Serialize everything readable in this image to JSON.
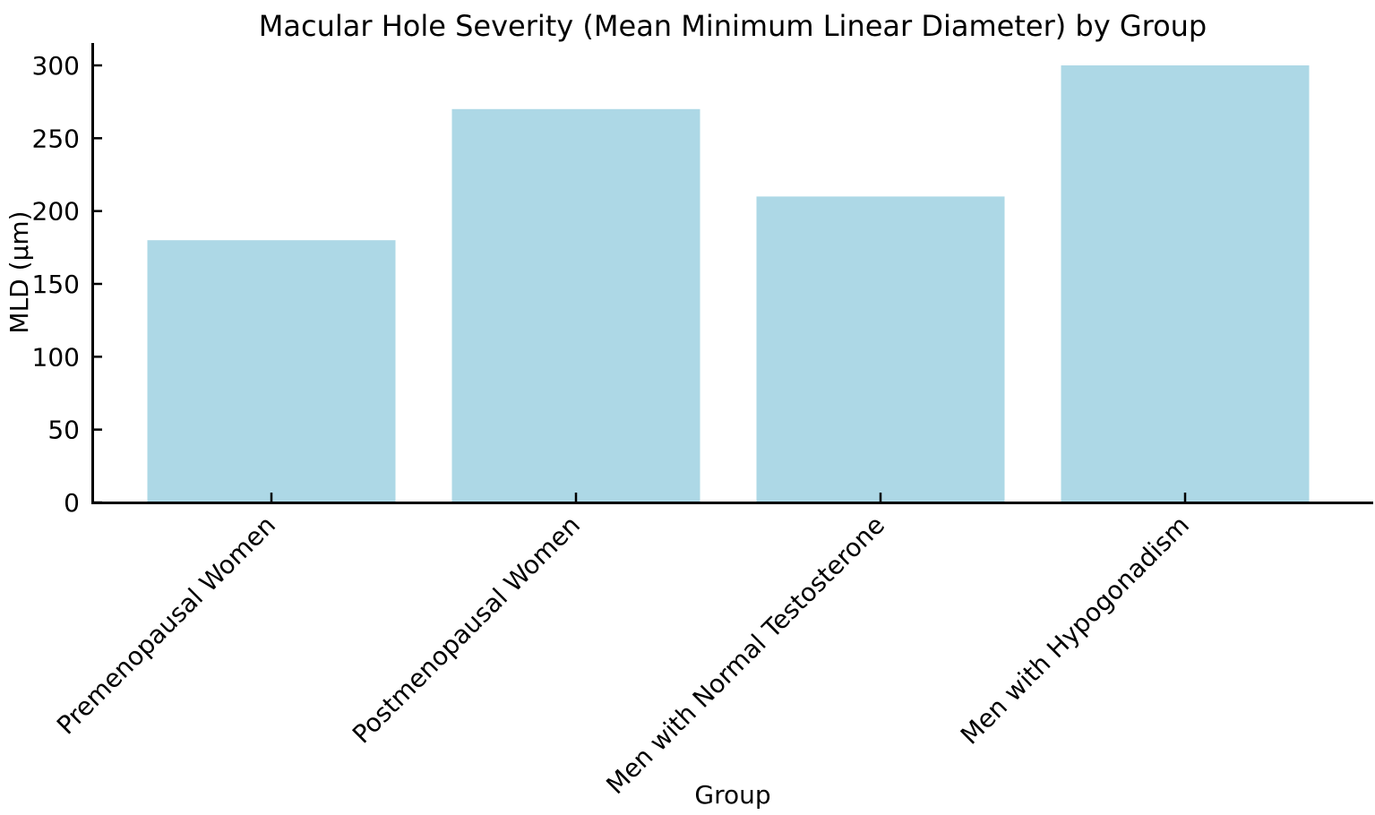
{
  "chart_data": {
    "type": "bar",
    "title": "Macular Hole Severity (Mean Minimum Linear Diameter) by Group",
    "xlabel": "Group",
    "ylabel": "MLD (μm)",
    "categories": [
      "Premenopausal Women",
      "Postmenopausal Women",
      "Men with Normal Testosterone",
      "Men with Hypogonadism"
    ],
    "values": [
      180,
      270,
      210,
      300
    ],
    "yticks": [
      0,
      50,
      100,
      150,
      200,
      250,
      300
    ],
    "ylim": [
      0,
      315
    ],
    "x_tick_rotation_deg": 45,
    "tick_direction": "in",
    "grid": false,
    "legend": false,
    "bar_color": "#ADD8E6",
    "axis_color": "#000000",
    "text_color": "#000000",
    "background": "#FFFFFF"
  }
}
